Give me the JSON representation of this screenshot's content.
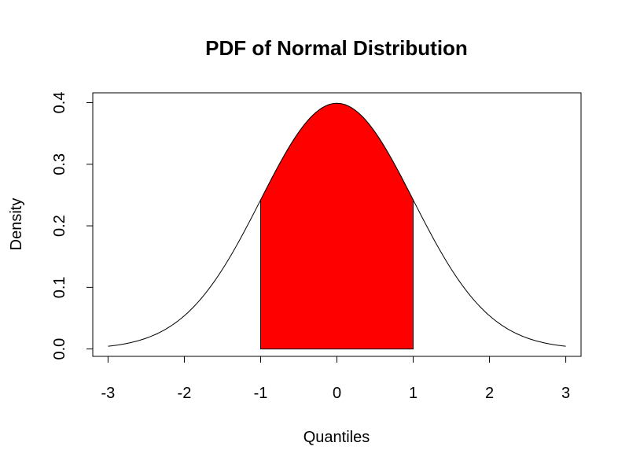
{
  "chart_data": {
    "type": "area",
    "title": "PDF of Normal Distribution",
    "xlabel": "Quantiles",
    "ylabel": "Density",
    "xlim": [
      -3.2,
      3.2
    ],
    "ylim": [
      -0.012,
      0.416
    ],
    "x_ticks": [
      -3,
      -2,
      -1,
      0,
      1,
      2,
      3
    ],
    "x_tick_labels": [
      "-3",
      "-2",
      "-1",
      "0",
      "1",
      "2",
      "3"
    ],
    "y_ticks": [
      0.0,
      0.1,
      0.2,
      0.3,
      0.4
    ],
    "y_tick_labels": [
      "0.0",
      "0.1",
      "0.2",
      "0.3",
      "0.4"
    ],
    "grid": false,
    "series": [
      {
        "kind": "line",
        "x": [
          -3.0,
          -2.5,
          -2.0,
          -1.5,
          -1.0,
          -0.5,
          0.0,
          0.5,
          1.0,
          1.5,
          2.0,
          2.5,
          3.0
        ],
        "y": [
          0.0044,
          0.0175,
          0.054,
          0.1295,
          0.242,
          0.3521,
          0.3989,
          0.3521,
          0.242,
          0.1295,
          0.054,
          0.0175,
          0.0044
        ],
        "color": "#000000"
      },
      {
        "kind": "filled-area",
        "x": [
          -1.0,
          -0.75,
          -0.5,
          -0.25,
          0.0,
          0.25,
          0.5,
          0.75,
          1.0
        ],
        "y": [
          0.242,
          0.3011,
          0.3521,
          0.3867,
          0.3989,
          0.3867,
          0.3521,
          0.3011,
          0.242
        ],
        "color": "#ff0000"
      }
    ]
  }
}
